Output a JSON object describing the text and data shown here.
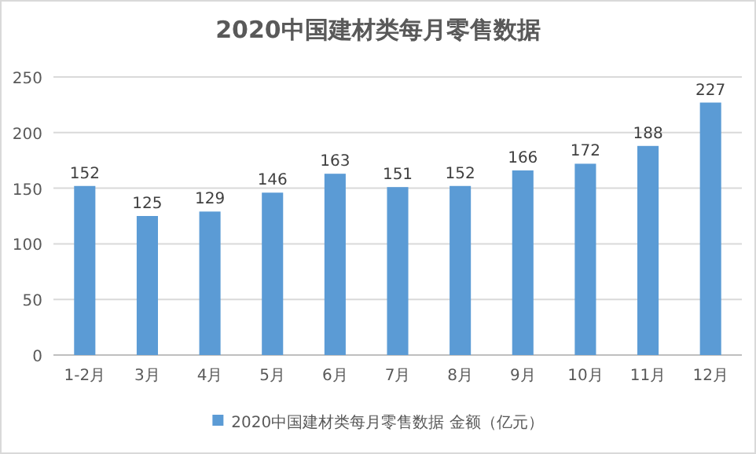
{
  "chart_data": {
    "type": "bar",
    "title": "2020中国建材类每月零售数据",
    "categories": [
      "1-2月",
      "3月",
      "4月",
      "5月",
      "6月",
      "7月",
      "8月",
      "9月",
      "10月",
      "11月",
      "12月"
    ],
    "series": [
      {
        "name": "2020中国建材类每月零售数据 金额（亿元）",
        "color": "#5b9bd5",
        "values": [
          152,
          125,
          129,
          146,
          163,
          151,
          152,
          166,
          172,
          188,
          227
        ]
      }
    ],
    "ylim": [
      0,
      250
    ],
    "yticks": [
      0,
      50,
      100,
      150,
      200,
      250
    ],
    "grid": "y",
    "legend": "bottom",
    "data_labels": true
  }
}
